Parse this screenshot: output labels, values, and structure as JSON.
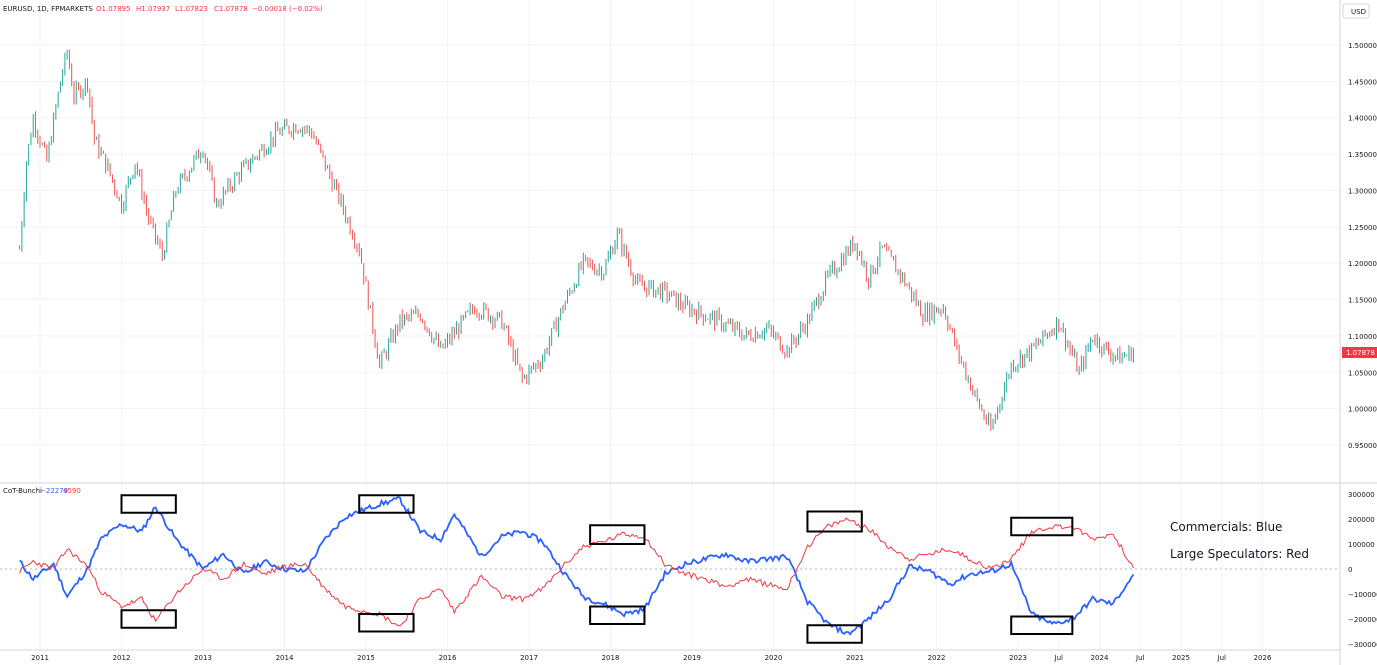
{
  "header": {
    "symbol": "EURUSD, 1D, FPMARKETS",
    "open": "O1.07895",
    "high": "H1.07937",
    "low": "L1.07823",
    "close": "C1.07878",
    "change": "−0.00018 (−0.02%)"
  },
  "price_axis": {
    "currency": "USD",
    "ticks": [
      "1.50000",
      "1.45000",
      "1.40000",
      "1.35000",
      "1.30000",
      "1.25000",
      "1.20000",
      "1.15000",
      "1.10000",
      "1.05000",
      "1.00000",
      "0.95000"
    ],
    "last_price": "1.07878"
  },
  "indicator": {
    "name": "CoT-Bunchi",
    "blue_value": "−22279",
    "red_value": "4590",
    "ticks": [
      "300000",
      "200000",
      "100000",
      "0",
      "−100000",
      "−200000",
      "−300000"
    ]
  },
  "time_axis": {
    "ticks": [
      "2011",
      "2012",
      "2013",
      "2014",
      "2015",
      "2016",
      "2017",
      "2018",
      "2019",
      "2020",
      "2021",
      "2022",
      "2023",
      "Jul",
      "2024",
      "Jul",
      "2025",
      "Jul",
      "2026"
    ]
  },
  "annotations": {
    "commercials": "Commercials: Blue",
    "speculators": "Large Speculators: Red"
  },
  "colors": {
    "up": "#26a69a",
    "down": "#ef5350",
    "commercials": "#2962ff",
    "speculators": "#f23645",
    "grid": "#f0f3fa",
    "border": "#d1d4dc",
    "text": "#131722"
  },
  "chart_data": [
    {
      "type": "candlestick",
      "title": "EURUSD, 1D, FPMARKETS",
      "ylim": [
        0.93,
        1.53
      ],
      "approx_path": [
        {
          "x": "2010-10",
          "y": 1.22
        },
        {
          "x": "2010-11",
          "y": 1.34
        },
        {
          "x": "2010-12",
          "y": 1.4
        },
        {
          "x": "2011-02",
          "y": 1.34
        },
        {
          "x": "2011-04",
          "y": 1.45
        },
        {
          "x": "2011-05",
          "y": 1.49
        },
        {
          "x": "2011-06",
          "y": 1.43
        },
        {
          "x": "2011-08",
          "y": 1.45
        },
        {
          "x": "2011-09",
          "y": 1.37
        },
        {
          "x": "2011-11",
          "y": 1.33
        },
        {
          "x": "2012-01",
          "y": 1.28
        },
        {
          "x": "2012-03",
          "y": 1.34
        },
        {
          "x": "2012-05",
          "y": 1.26
        },
        {
          "x": "2012-07",
          "y": 1.21
        },
        {
          "x": "2012-09",
          "y": 1.3
        },
        {
          "x": "2013-01",
          "y": 1.36
        },
        {
          "x": "2013-03",
          "y": 1.28
        },
        {
          "x": "2013-06",
          "y": 1.32
        },
        {
          "x": "2013-09",
          "y": 1.35
        },
        {
          "x": "2013-12",
          "y": 1.38
        },
        {
          "x": "2014-03",
          "y": 1.39
        },
        {
          "x": "2014-05",
          "y": 1.38
        },
        {
          "x": "2014-09",
          "y": 1.29
        },
        {
          "x": "2014-12",
          "y": 1.22
        },
        {
          "x": "2015-03",
          "y": 1.06
        },
        {
          "x": "2015-06",
          "y": 1.12
        },
        {
          "x": "2015-09",
          "y": 1.13
        },
        {
          "x": "2015-12",
          "y": 1.08
        },
        {
          "x": "2016-05",
          "y": 1.14
        },
        {
          "x": "2016-09",
          "y": 1.12
        },
        {
          "x": "2016-12",
          "y": 1.04
        },
        {
          "x": "2017-03",
          "y": 1.07
        },
        {
          "x": "2017-06",
          "y": 1.14
        },
        {
          "x": "2017-09",
          "y": 1.2
        },
        {
          "x": "2017-12",
          "y": 1.19
        },
        {
          "x": "2018-02",
          "y": 1.24
        },
        {
          "x": "2018-05",
          "y": 1.17
        },
        {
          "x": "2018-09",
          "y": 1.16
        },
        {
          "x": "2018-12",
          "y": 1.14
        },
        {
          "x": "2019-05",
          "y": 1.12
        },
        {
          "x": "2019-09",
          "y": 1.1
        },
        {
          "x": "2019-12",
          "y": 1.11
        },
        {
          "x": "2020-03",
          "y": 1.08
        },
        {
          "x": "2020-06",
          "y": 1.12
        },
        {
          "x": "2020-09",
          "y": 1.18
        },
        {
          "x": "2021-01",
          "y": 1.23
        },
        {
          "x": "2021-03",
          "y": 1.18
        },
        {
          "x": "2021-05",
          "y": 1.22
        },
        {
          "x": "2021-08",
          "y": 1.18
        },
        {
          "x": "2021-11",
          "y": 1.13
        },
        {
          "x": "2022-02",
          "y": 1.14
        },
        {
          "x": "2022-04",
          "y": 1.08
        },
        {
          "x": "2022-07",
          "y": 1.01
        },
        {
          "x": "2022-09",
          "y": 0.97
        },
        {
          "x": "2022-12",
          "y": 1.06
        },
        {
          "x": "2023-03",
          "y": 1.08
        },
        {
          "x": "2023-05",
          "y": 1.1
        },
        {
          "x": "2023-07",
          "y": 1.12
        },
        {
          "x": "2023-10",
          "y": 1.05
        },
        {
          "x": "2023-12",
          "y": 1.1
        },
        {
          "x": "2024-02",
          "y": 1.08
        },
        {
          "x": "2024-04",
          "y": 1.07
        },
        {
          "x": "2024-06",
          "y": 1.078
        }
      ]
    },
    {
      "type": "line",
      "title": "CoT-Bunchi",
      "ylim": [
        -330000,
        320000
      ],
      "series": [
        {
          "color": "#2962ff",
          "values": [
            {
              "x": "2010-10",
              "y": 30000
            },
            {
              "x": "2010-12",
              "y": -40000
            },
            {
              "x": "2011-03",
              "y": 20000
            },
            {
              "x": "2011-05",
              "y": -110000
            },
            {
              "x": "2011-08",
              "y": 0
            },
            {
              "x": "2011-10",
              "y": 120000
            },
            {
              "x": "2012-01",
              "y": 180000
            },
            {
              "x": "2012-04",
              "y": 150000
            },
            {
              "x": "2012-06",
              "y": 250000
            },
            {
              "x": "2012-09",
              "y": 120000
            },
            {
              "x": "2013-01",
              "y": 0
            },
            {
              "x": "2013-04",
              "y": 60000
            },
            {
              "x": "2013-07",
              "y": -20000
            },
            {
              "x": "2013-10",
              "y": 30000
            },
            {
              "x": "2014-01",
              "y": 0
            },
            {
              "x": "2014-04",
              "y": -10000
            },
            {
              "x": "2014-07",
              "y": 120000
            },
            {
              "x": "2014-10",
              "y": 210000
            },
            {
              "x": "2015-03",
              "y": 260000
            },
            {
              "x": "2015-06",
              "y": 280000
            },
            {
              "x": "2015-09",
              "y": 150000
            },
            {
              "x": "2015-12",
              "y": 120000
            },
            {
              "x": "2016-02",
              "y": 220000
            },
            {
              "x": "2016-06",
              "y": 50000
            },
            {
              "x": "2016-09",
              "y": 130000
            },
            {
              "x": "2016-12",
              "y": 150000
            },
            {
              "x": "2017-03",
              "y": 110000
            },
            {
              "x": "2017-06",
              "y": -10000
            },
            {
              "x": "2017-09",
              "y": -110000
            },
            {
              "x": "2017-12",
              "y": -140000
            },
            {
              "x": "2018-03",
              "y": -180000
            },
            {
              "x": "2018-06",
              "y": -160000
            },
            {
              "x": "2018-09",
              "y": -20000
            },
            {
              "x": "2018-12",
              "y": 20000
            },
            {
              "x": "2019-03",
              "y": 40000
            },
            {
              "x": "2019-06",
              "y": 60000
            },
            {
              "x": "2019-09",
              "y": 30000
            },
            {
              "x": "2019-12",
              "y": 40000
            },
            {
              "x": "2020-03",
              "y": 50000
            },
            {
              "x": "2020-06",
              "y": -130000
            },
            {
              "x": "2020-09",
              "y": -220000
            },
            {
              "x": "2020-12",
              "y": -260000
            },
            {
              "x": "2021-03",
              "y": -200000
            },
            {
              "x": "2021-06",
              "y": -120000
            },
            {
              "x": "2021-09",
              "y": 10000
            },
            {
              "x": "2021-12",
              "y": -10000
            },
            {
              "x": "2022-03",
              "y": -60000
            },
            {
              "x": "2022-06",
              "y": -20000
            },
            {
              "x": "2022-09",
              "y": -10000
            },
            {
              "x": "2022-12",
              "y": 20000
            },
            {
              "x": "2023-03",
              "y": -180000
            },
            {
              "x": "2023-06",
              "y": -220000
            },
            {
              "x": "2023-09",
              "y": -200000
            },
            {
              "x": "2023-12",
              "y": -120000
            },
            {
              "x": "2024-03",
              "y": -140000
            },
            {
              "x": "2024-06",
              "y": -22279
            }
          ]
        },
        {
          "color": "#f23645",
          "values": [
            {
              "x": "2010-10",
              "y": -10000
            },
            {
              "x": "2010-12",
              "y": 30000
            },
            {
              "x": "2011-03",
              "y": 0
            },
            {
              "x": "2011-05",
              "y": 80000
            },
            {
              "x": "2011-08",
              "y": 10000
            },
            {
              "x": "2011-10",
              "y": -90000
            },
            {
              "x": "2012-01",
              "y": -150000
            },
            {
              "x": "2012-04",
              "y": -120000
            },
            {
              "x": "2012-06",
              "y": -210000
            },
            {
              "x": "2012-09",
              "y": -100000
            },
            {
              "x": "2013-01",
              "y": 0
            },
            {
              "x": "2013-04",
              "y": -40000
            },
            {
              "x": "2013-07",
              "y": 20000
            },
            {
              "x": "2013-10",
              "y": -20000
            },
            {
              "x": "2014-01",
              "y": 10000
            },
            {
              "x": "2014-04",
              "y": 20000
            },
            {
              "x": "2014-07",
              "y": -80000
            },
            {
              "x": "2014-10",
              "y": -150000
            },
            {
              "x": "2015-03",
              "y": -180000
            },
            {
              "x": "2015-06",
              "y": -230000
            },
            {
              "x": "2015-09",
              "y": -120000
            },
            {
              "x": "2015-12",
              "y": -80000
            },
            {
              "x": "2016-02",
              "y": -170000
            },
            {
              "x": "2016-06",
              "y": -30000
            },
            {
              "x": "2016-09",
              "y": -110000
            },
            {
              "x": "2016-12",
              "y": -120000
            },
            {
              "x": "2017-03",
              "y": -80000
            },
            {
              "x": "2017-06",
              "y": 10000
            },
            {
              "x": "2017-09",
              "y": 90000
            },
            {
              "x": "2017-12",
              "y": 110000
            },
            {
              "x": "2018-03",
              "y": 140000
            },
            {
              "x": "2018-06",
              "y": 130000
            },
            {
              "x": "2018-09",
              "y": 20000
            },
            {
              "x": "2018-12",
              "y": -20000
            },
            {
              "x": "2019-03",
              "y": -40000
            },
            {
              "x": "2019-06",
              "y": -70000
            },
            {
              "x": "2019-09",
              "y": -40000
            },
            {
              "x": "2019-12",
              "y": -60000
            },
            {
              "x": "2020-03",
              "y": -80000
            },
            {
              "x": "2020-06",
              "y": 90000
            },
            {
              "x": "2020-09",
              "y": 170000
            },
            {
              "x": "2020-12",
              "y": 200000
            },
            {
              "x": "2021-03",
              "y": 160000
            },
            {
              "x": "2021-06",
              "y": 90000
            },
            {
              "x": "2021-09",
              "y": 40000
            },
            {
              "x": "2021-12",
              "y": 60000
            },
            {
              "x": "2022-03",
              "y": 80000
            },
            {
              "x": "2022-06",
              "y": 40000
            },
            {
              "x": "2022-09",
              "y": 0
            },
            {
              "x": "2022-12",
              "y": 40000
            },
            {
              "x": "2023-03",
              "y": 150000
            },
            {
              "x": "2023-06",
              "y": 170000
            },
            {
              "x": "2023-09",
              "y": 170000
            },
            {
              "x": "2023-12",
              "y": 120000
            },
            {
              "x": "2024-03",
              "y": 140000
            },
            {
              "x": "2024-06",
              "y": 4590
            }
          ]
        }
      ],
      "highlight_boxes": [
        {
          "series": "blue",
          "x_range": [
            "2012-01",
            "2012-09"
          ],
          "y_range": [
            225000,
            295000
          ]
        },
        {
          "series": "red",
          "x_range": [
            "2012-01",
            "2012-09"
          ],
          "y_range": [
            -235000,
            -165000
          ]
        },
        {
          "series": "blue",
          "x_range": [
            "2014-12",
            "2015-08"
          ],
          "y_range": [
            225000,
            295000
          ]
        },
        {
          "series": "red",
          "x_range": [
            "2014-12",
            "2015-08"
          ],
          "y_range": [
            -250000,
            -180000
          ]
        },
        {
          "series": "red",
          "x_range": [
            "2017-10",
            "2018-06"
          ],
          "y_range": [
            100000,
            175000
          ]
        },
        {
          "series": "blue",
          "x_range": [
            "2017-10",
            "2018-06"
          ],
          "y_range": [
            -220000,
            -150000
          ]
        },
        {
          "series": "red",
          "x_range": [
            "2020-06",
            "2021-02"
          ],
          "y_range": [
            150000,
            230000
          ]
        },
        {
          "series": "blue",
          "x_range": [
            "2020-06",
            "2021-02"
          ],
          "y_range": [
            -295000,
            -225000
          ]
        },
        {
          "series": "red",
          "x_range": [
            "2022-12",
            "2023-09"
          ],
          "y_range": [
            135000,
            205000
          ]
        },
        {
          "series": "blue",
          "x_range": [
            "2022-12",
            "2023-09"
          ],
          "y_range": [
            -260000,
            -190000
          ]
        }
      ]
    }
  ]
}
